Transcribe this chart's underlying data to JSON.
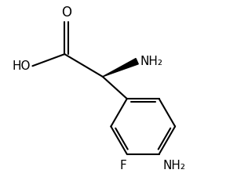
{
  "bg_color": "#ffffff",
  "line_color": "#000000",
  "line_width": 1.5,
  "font_size": 10,
  "figsize": [
    3.16,
    2.49
  ],
  "dpi": 100,
  "xlim": [
    0,
    10
  ],
  "ylim": [
    0,
    8
  ]
}
